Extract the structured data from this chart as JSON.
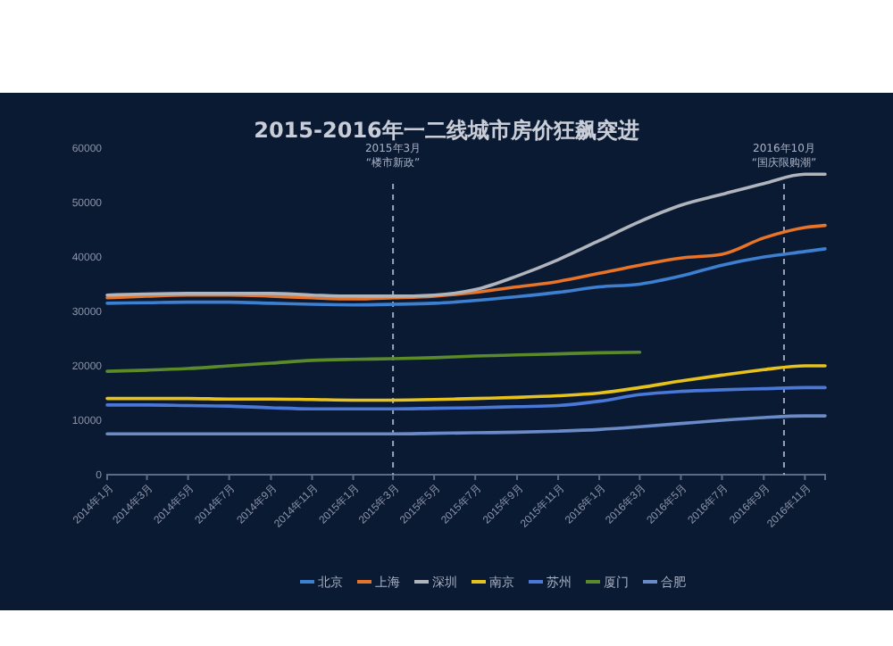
{
  "chart_data": {
    "type": "line",
    "title": "2015-2016年一二线城市房价狂飙突进",
    "x": [
      "2014-01",
      "2014-03",
      "2014-05",
      "2014-07",
      "2014-09",
      "2014-11",
      "2015-01",
      "2015-03",
      "2015-05",
      "2015-07",
      "2015-09",
      "2015-11",
      "2016-01",
      "2016-03",
      "2016-05",
      "2016-07",
      "2016-09",
      "2016-11",
      "2016-12"
    ],
    "series": [
      {
        "name": "北京",
        "color": "#3d7fd0",
        "values": [
          31500,
          31600,
          31700,
          31700,
          31500,
          31300,
          31200,
          31300,
          31500,
          32000,
          32700,
          33500,
          34500,
          35000,
          36500,
          38500,
          40000,
          41000,
          41500
        ]
      },
      {
        "name": "上海",
        "color": "#e8742a",
        "values": [
          32500,
          32800,
          33000,
          33000,
          32800,
          32500,
          32300,
          32500,
          32800,
          33500,
          34500,
          35500,
          37000,
          38500,
          39800,
          40500,
          43500,
          45400,
          45800
        ]
      },
      {
        "name": "深圳",
        "color": "#b0b4bc",
        "values": [
          33000,
          33200,
          33300,
          33300,
          33300,
          33000,
          32800,
          32800,
          33000,
          34000,
          36500,
          39500,
          43000,
          46500,
          49500,
          51500,
          53500,
          55200,
          55200
        ]
      },
      {
        "name": "南京",
        "color": "#e8c21c",
        "values": [
          14000,
          14000,
          14000,
          13900,
          13900,
          13800,
          13700,
          13700,
          13800,
          14000,
          14200,
          14500,
          15000,
          16000,
          17200,
          18300,
          19300,
          20000,
          20000
        ]
      },
      {
        "name": "苏州",
        "color": "#4a78d8",
        "values": [
          12800,
          12800,
          12700,
          12600,
          12300,
          12100,
          12100,
          12100,
          12200,
          12300,
          12500,
          12700,
          13500,
          14700,
          15300,
          15600,
          15800,
          16000,
          16000
        ]
      },
      {
        "name": "厦门",
        "color": "#5a8a2a",
        "values": [
          19000,
          19200,
          19500,
          20000,
          20500,
          21000,
          21200,
          21300,
          21500,
          21800,
          22000,
          22200,
          22400,
          22500,
          null,
          null,
          null,
          null,
          null
        ]
      },
      {
        "name": "合肥",
        "color": "#6a8ac8",
        "values": [
          7500,
          7500,
          7500,
          7500,
          7500,
          7500,
          7500,
          7500,
          7600,
          7700,
          7800,
          8000,
          8300,
          8800,
          9400,
          10000,
          10500,
          10800,
          10800
        ]
      }
    ],
    "xlim": [
      "2014-01",
      "2016-12"
    ],
    "xticks": [
      {
        "value": "2014-01",
        "label": "2014年1月"
      },
      {
        "value": "2014-03",
        "label": "2014年3月"
      },
      {
        "value": "2014-05",
        "label": "2014年5月"
      },
      {
        "value": "2014-07",
        "label": "2014年7月"
      },
      {
        "value": "2014-09",
        "label": "2014年9月"
      },
      {
        "value": "2014-11",
        "label": "2014年11月"
      },
      {
        "value": "2015-01",
        "label": "2015年1月"
      },
      {
        "value": "2015-03",
        "label": "2015年3月"
      },
      {
        "value": "2015-05",
        "label": "2015年5月"
      },
      {
        "value": "2015-07",
        "label": "2015年7月"
      },
      {
        "value": "2015-09",
        "label": "2015年9月"
      },
      {
        "value": "2015-11",
        "label": "2015年11月"
      },
      {
        "value": "2016-01",
        "label": "2016年1月"
      },
      {
        "value": "2016-03",
        "label": "2016年3月"
      },
      {
        "value": "2016-05",
        "label": "2016年5月"
      },
      {
        "value": "2016-07",
        "label": "2016年7月"
      },
      {
        "value": "2016-09",
        "label": "2016年9月"
      },
      {
        "value": "2016-11",
        "label": "2016年11月"
      }
    ],
    "ylim": [
      0,
      60000
    ],
    "yticks": [
      0,
      10000,
      20000,
      30000,
      40000,
      50000,
      60000
    ],
    "ref_lines": [
      {
        "axis": "x",
        "value": "2015-03",
        "label": "2015年3月\n“楼市新政”",
        "line_style": "dashed"
      },
      {
        "axis": "x",
        "value": "2016-10",
        "label": "2016年10月\n“国庆限购潮”",
        "line_style": "dashed"
      }
    ],
    "legend": "bottom",
    "grid": false,
    "marker": "none",
    "line_style": "solid"
  }
}
